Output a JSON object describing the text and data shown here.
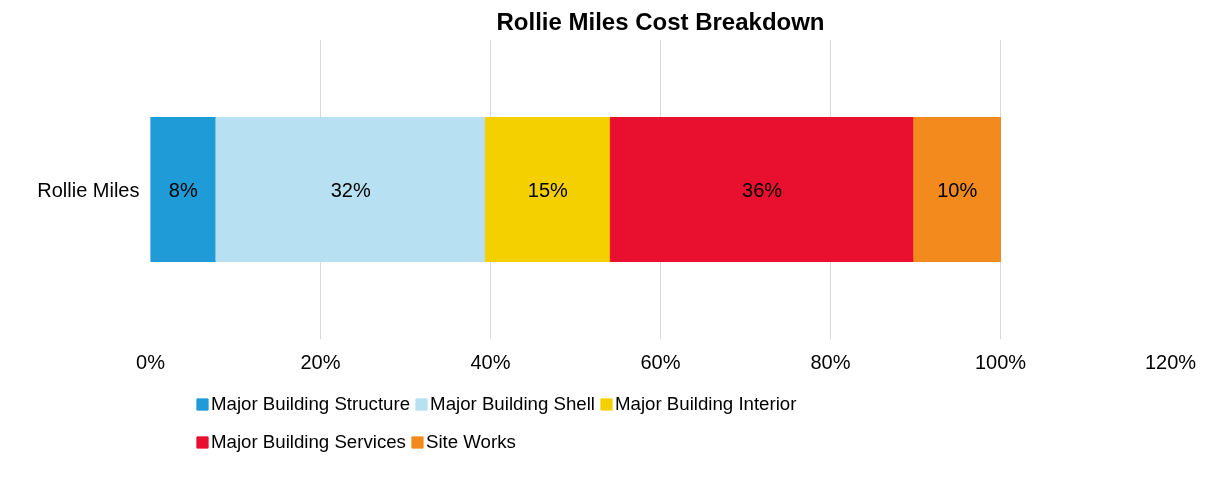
{
  "chart_data": {
    "type": "bar",
    "title": "Rollie Miles Cost Breakdown",
    "orientation": "horizontal",
    "stacked": true,
    "categories": [
      "Rollie Miles"
    ],
    "series": [
      {
        "name": "Major Building Structure",
        "color": "#1f9bd7",
        "values": [
          7.7
        ],
        "value_labels": [
          "8%"
        ]
      },
      {
        "name": "Major Building Shell",
        "color": "#b7e1f3",
        "values": [
          31.7
        ],
        "value_labels": [
          "32%"
        ]
      },
      {
        "name": "Major Building Interior",
        "color": "#f5d000",
        "values": [
          14.7
        ],
        "value_labels": [
          "15%"
        ]
      },
      {
        "name": "Major Building Services",
        "color": "#e8102e",
        "values": [
          35.7
        ],
        "value_labels": [
          "36%"
        ]
      },
      {
        "name": "Site Works",
        "color": "#f28a1e",
        "values": [
          10.2
        ],
        "value_labels": [
          "10%"
        ]
      }
    ],
    "xlim": [
      0,
      120
    ],
    "xticks": [
      {
        "value": 0,
        "label": "0%"
      },
      {
        "value": 20,
        "label": "20%"
      },
      {
        "value": 40,
        "label": "40%"
      },
      {
        "value": 60,
        "label": "60%"
      },
      {
        "value": 80,
        "label": "80%"
      },
      {
        "value": 100,
        "label": "100%"
      },
      {
        "value": 120,
        "label": "120%"
      }
    ],
    "grid": "x",
    "legend": "bottom"
  }
}
